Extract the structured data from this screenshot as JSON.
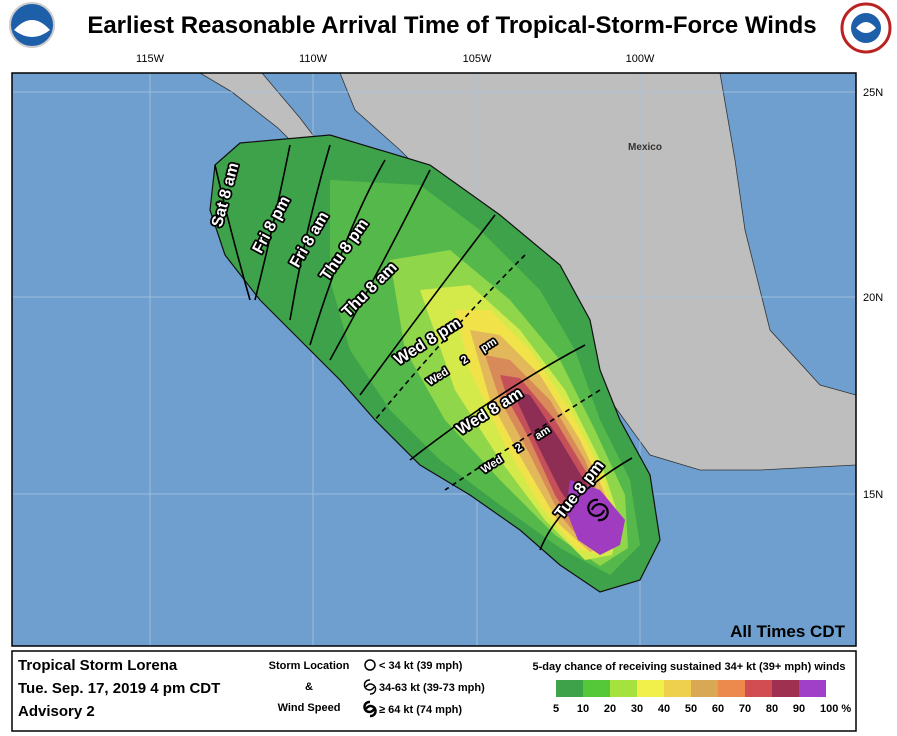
{
  "header": {
    "title": "Earliest Reasonable Arrival Time of Tropical-Storm-Force Winds"
  },
  "map": {
    "lon_labels": [
      "115W",
      "110W",
      "105W",
      "100W"
    ],
    "lat_labels": [
      "25N",
      "20N",
      "15N"
    ],
    "place_labels": [
      "Mexico"
    ],
    "time_labels": [
      "Sat 8 am",
      "Fri 8 pm",
      "Fri 8 am",
      "Thu 8 pm",
      "Thu 8 am",
      "Wed 8 pm",
      "Wed 2 pm",
      "Wed 8 am",
      "Wed 2 am",
      "Tue 8 pm"
    ],
    "note": "All Times CDT"
  },
  "legend": {
    "storm_name": "Tropical Storm Lorena",
    "datetime": "Tue. Sep. 17, 2019  4 pm CDT",
    "advisory": "Advisory 2",
    "key_title": [
      "Storm Location",
      "&",
      "Wind Speed"
    ],
    "key_items": [
      "< 34 kt (39 mph)",
      "34-63 kt (39-73 mph)",
      "≥ 64 kt (74 mph)"
    ],
    "scale_title": "5-day chance of receiving sustained 34+ kt (39+ mph) winds",
    "scale_labels": [
      "5",
      "10",
      "20",
      "30",
      "40",
      "50",
      "60",
      "70",
      "80",
      "90",
      "100 %"
    ]
  }
}
